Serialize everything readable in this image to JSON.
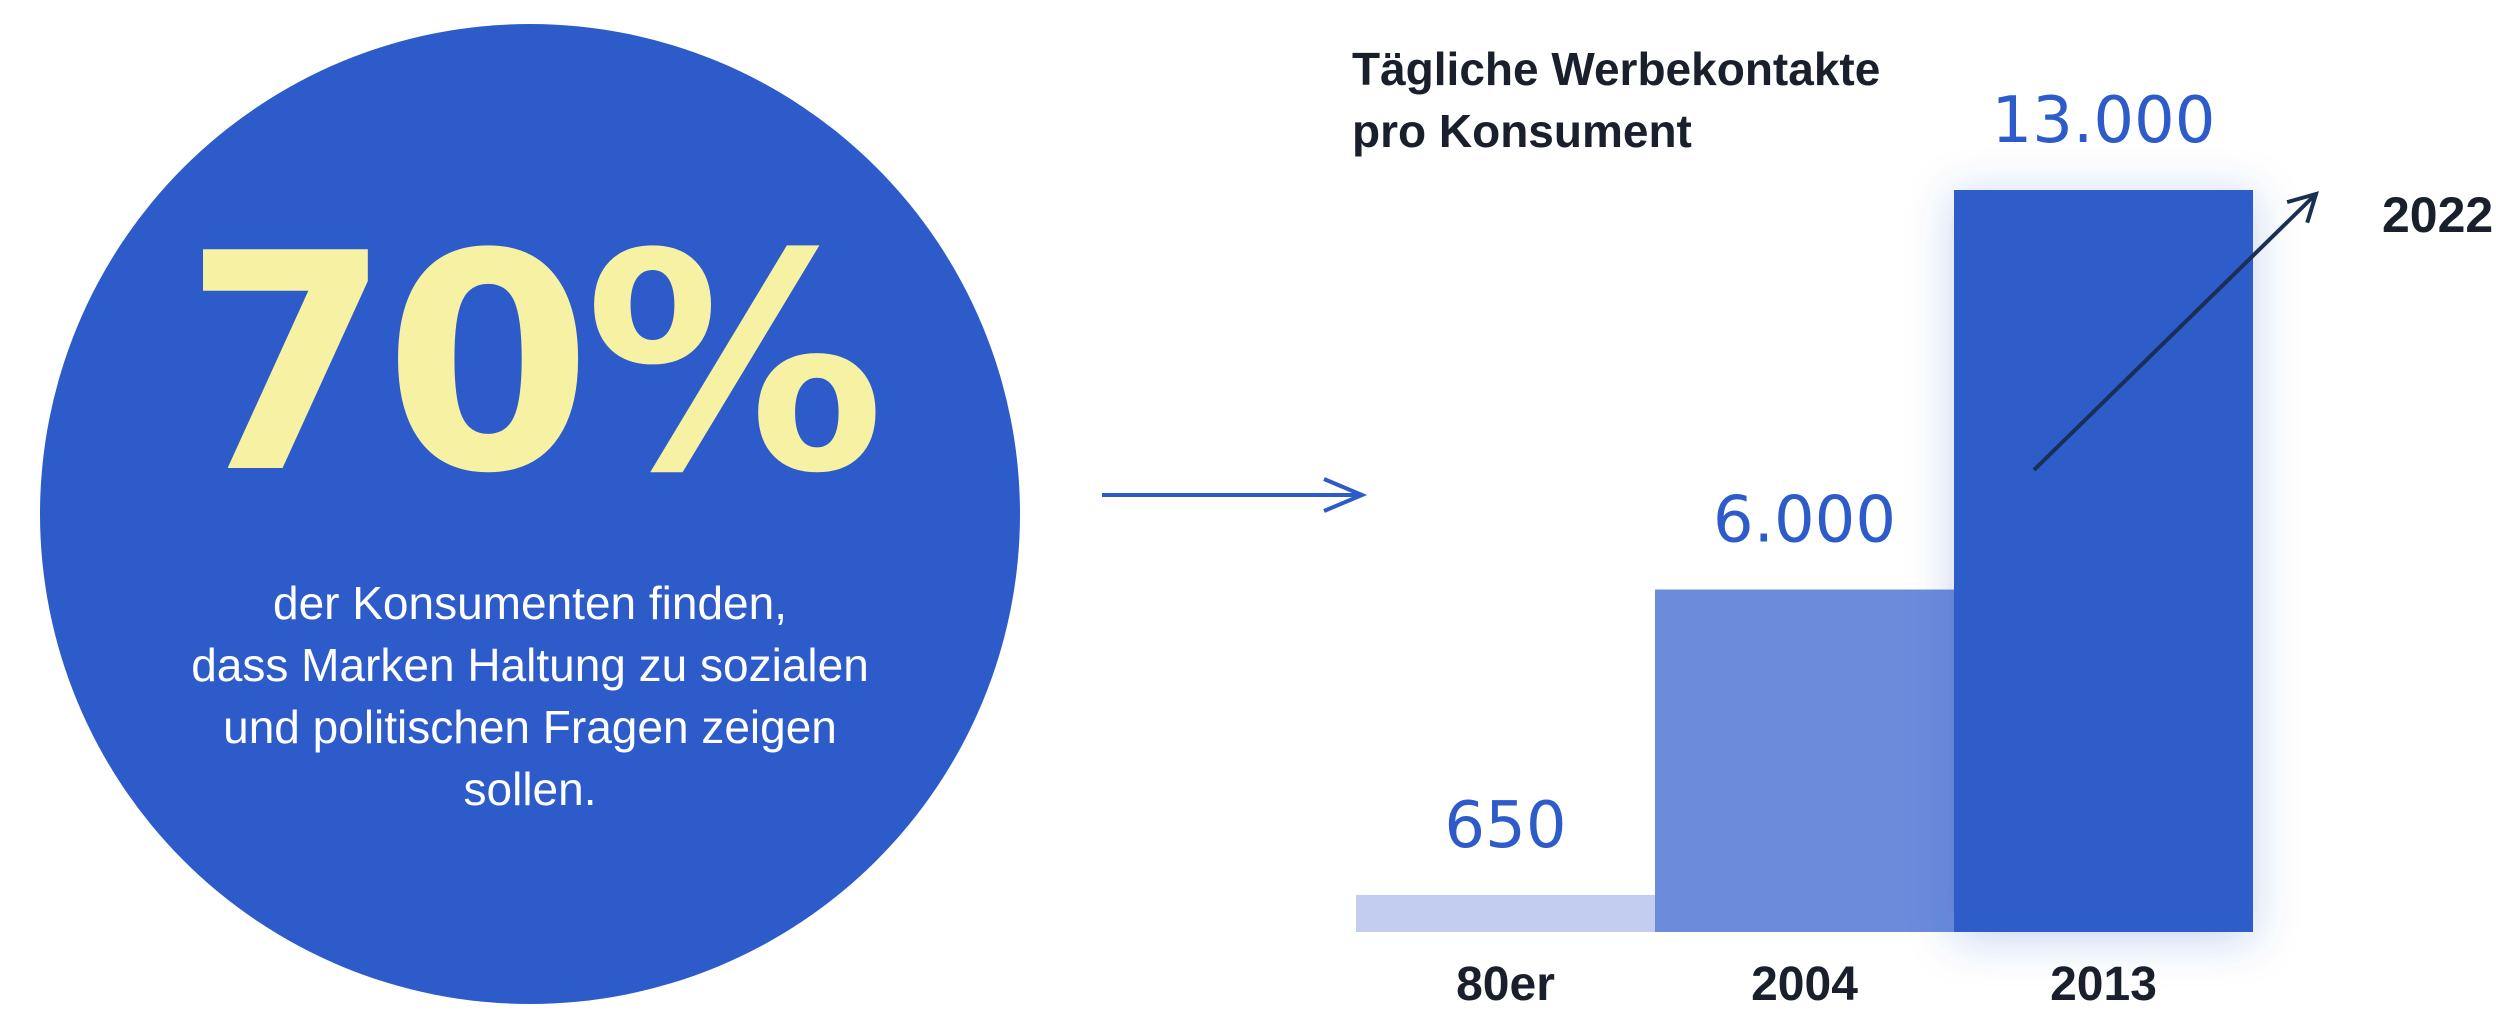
{
  "stat": {
    "value": "70%",
    "text_lines": [
      "der Konsumenten finden,",
      "dass Marken Haltung zu sozialen",
      "und politischen Fragen zeigen",
      "sollen."
    ]
  },
  "chart_data": {
    "type": "bar",
    "title_lines": [
      "Tägliche Werbekontakte",
      "pro Konsument"
    ],
    "categories": [
      "80er",
      "2004",
      "2013"
    ],
    "values": [
      650,
      6000,
      13000
    ],
    "value_labels": [
      "650",
      "6.000",
      "13.000"
    ],
    "bar_colors": [
      "#c3cdef",
      "#6c8bdb",
      "#2d5bc9"
    ],
    "annotation": "2022",
    "ylim": [
      0,
      13000
    ],
    "grid": false
  },
  "colors": {
    "accent": "#2d5bc9",
    "highlight": "#f7f1a3",
    "text_dark": "#1a1f2c"
  }
}
